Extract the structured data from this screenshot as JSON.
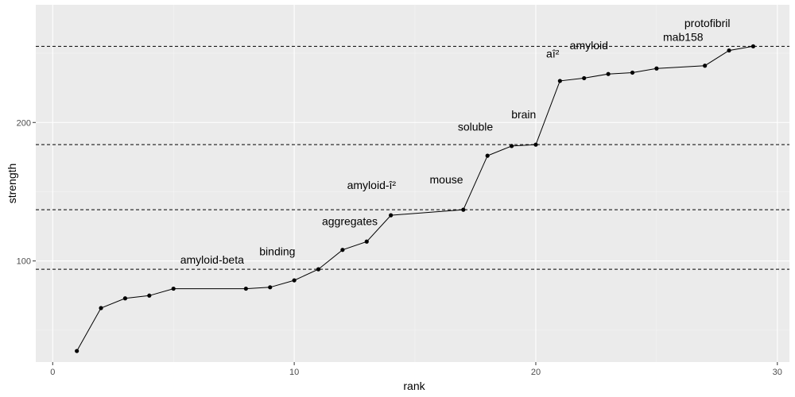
{
  "chart_data": {
    "type": "line",
    "xlabel": "rank",
    "ylabel": "strength",
    "xlim": [
      -0.7,
      30.5
    ],
    "ylim": [
      27,
      285
    ],
    "x_ticks": [
      0,
      10,
      20,
      30
    ],
    "y_ticks": [
      100,
      200
    ],
    "x_tick_labels": [
      "0",
      "10",
      "20",
      "30"
    ],
    "y_tick_labels": [
      "100",
      "200"
    ],
    "grid": true,
    "series": [
      {
        "x": [
          1,
          2,
          3,
          4,
          5,
          8,
          9,
          10,
          11,
          12,
          13,
          14,
          17,
          18,
          19,
          20,
          21,
          22,
          23,
          24,
          25,
          27,
          28,
          29
        ],
        "y": [
          35,
          66,
          73,
          75,
          80,
          80,
          81,
          86,
          94,
          108,
          114,
          133,
          137,
          176,
          183,
          184,
          230,
          232,
          235,
          236,
          239,
          241,
          252,
          255
        ]
      }
    ],
    "hlines": [
      94,
      137,
      184,
      255
    ],
    "annotations": [
      {
        "text": "amyloid-beta",
        "x": 6.6,
        "y": 98
      },
      {
        "text": "binding",
        "x": 9.3,
        "y": 104
      },
      {
        "text": "aggregates",
        "x": 12.3,
        "y": 126
      },
      {
        "text": "amyloid-î²",
        "x": 13.2,
        "y": 152
      },
      {
        "text": "mouse",
        "x": 16.3,
        "y": 156
      },
      {
        "text": "soluble",
        "x": 17.5,
        "y": 194
      },
      {
        "text": "brain",
        "x": 19.5,
        "y": 203
      },
      {
        "text": "aî²",
        "x": 20.7,
        "y": 247
      },
      {
        "text": "amyloid",
        "x": 22.2,
        "y": 253
      },
      {
        "text": "mab158",
        "x": 26.1,
        "y": 259
      },
      {
        "text": "protofibril",
        "x": 27.1,
        "y": 269
      }
    ],
    "colors": {
      "panel": "#ebebeb",
      "grid_major": "#ffffff",
      "grid_minor": "#f5f5f5",
      "line": "#000000",
      "hline": "#000000"
    }
  }
}
